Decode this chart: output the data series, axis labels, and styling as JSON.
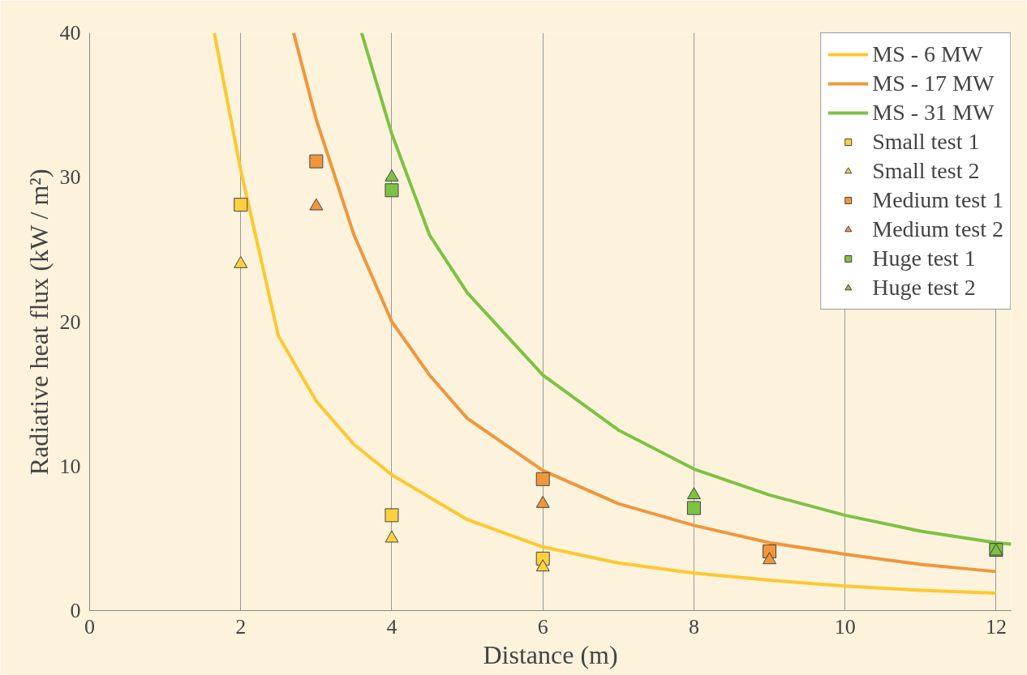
{
  "chart_data": {
    "type": "line",
    "xlabel": "Distance (m)",
    "ylabel": "Radiative heat flux (kW / m²)",
    "xlim": [
      0,
      12.2
    ],
    "ylim": [
      0,
      40
    ],
    "xticks": [
      0,
      2,
      4,
      6,
      8,
      10,
      12
    ],
    "yticks": [
      0,
      10,
      20,
      30,
      40
    ],
    "grid": "x",
    "legend": "top right",
    "series": [
      {
        "name": "MS - 6 MW",
        "color": "#fdc82f",
        "x": [
          1.65,
          2,
          2.5,
          3,
          3.5,
          4,
          5,
          6,
          7,
          8,
          9,
          10,
          11,
          12
        ],
        "values": [
          40,
          30.5,
          19,
          14.5,
          11.5,
          9.4,
          6.3,
          4.4,
          3.3,
          2.6,
          2.1,
          1.7,
          1.4,
          1.2
        ]
      },
      {
        "name": "MS - 17 MW",
        "color": "#f0963c",
        "x": [
          2.7,
          3,
          3.5,
          4,
          4.5,
          5,
          6,
          7,
          8,
          9,
          10,
          11,
          12
        ],
        "values": [
          40,
          34,
          26,
          20,
          16.3,
          13.3,
          9.7,
          7.4,
          5.9,
          4.7,
          3.9,
          3.2,
          2.7
        ]
      },
      {
        "name": "MS - 31 MW",
        "color": "#7dc242",
        "x": [
          3.6,
          4,
          4.5,
          5,
          6,
          7,
          8,
          9,
          10,
          11,
          12,
          12.2
        ],
        "values": [
          40,
          33,
          26,
          22,
          16.3,
          12.5,
          9.8,
          8,
          6.6,
          5.5,
          4.7,
          4.6
        ]
      },
      {
        "name": "Small test 1",
        "type": "scatter",
        "marker": "square",
        "color": "#ffd040",
        "x": [
          2,
          4,
          6
        ],
        "values": [
          28.1,
          6.6,
          3.6
        ]
      },
      {
        "name": "Small test 2",
        "type": "scatter",
        "marker": "triangle",
        "color": "#ffd040",
        "x": [
          2,
          4,
          6
        ],
        "values": [
          24,
          5,
          3
        ]
      },
      {
        "name": "Medium test 1",
        "type": "scatter",
        "marker": "square",
        "color": "#f0963c",
        "x": [
          3,
          6,
          9
        ],
        "values": [
          31.1,
          9.1,
          4.1
        ]
      },
      {
        "name": "Medium test 2",
        "type": "scatter",
        "marker": "triangle",
        "color": "#f0963c",
        "x": [
          3,
          6,
          9
        ],
        "values": [
          28,
          7.4,
          3.5
        ]
      },
      {
        "name": "Huge test 1",
        "type": "scatter",
        "marker": "square",
        "color": "#7ec242",
        "x": [
          4,
          8,
          12
        ],
        "values": [
          29.1,
          7.1,
          4.2
        ]
      },
      {
        "name": "Huge test 2",
        "type": "scatter",
        "marker": "triangle",
        "color": "#7ec242",
        "x": [
          4,
          8,
          12
        ],
        "values": [
          30,
          8,
          4.1
        ]
      }
    ]
  }
}
